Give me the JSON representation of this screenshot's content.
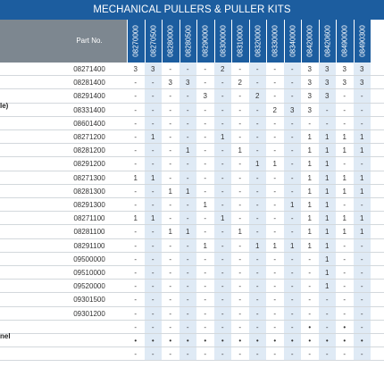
{
  "title": "MECHANICAL PULLERS & PULLER KITS",
  "part_no_header": "Part No.",
  "columns": [
    "08270000",
    "08270500",
    "08280000",
    "08280500",
    "08290000",
    "08300000",
    "08310000",
    "08320000",
    "08330000",
    "08340000",
    "08420000",
    "08420600",
    "08490000",
    "08490300"
  ],
  "descriptions": [
    {
      "row": 3,
      "text": "le)"
    },
    {
      "row": 20,
      "text": "nel"
    }
  ],
  "rows": [
    {
      "part": "08271400",
      "cells": [
        "3",
        "3",
        "-",
        "-",
        "-",
        "2",
        "-",
        "-",
        "-",
        "-",
        "3",
        "3",
        "3",
        "3"
      ]
    },
    {
      "part": "08281400",
      "cells": [
        "-",
        "-",
        "3",
        "3",
        "-",
        "-",
        "2",
        "-",
        "-",
        "-",
        "3",
        "3",
        "3",
        "3"
      ]
    },
    {
      "part": "08291400",
      "cells": [
        "-",
        "-",
        "-",
        "-",
        "3",
        "-",
        "-",
        "2",
        "-",
        "-",
        "3",
        "3",
        "-",
        "-"
      ]
    },
    {
      "part": "08331400",
      "cells": [
        "-",
        "-",
        "-",
        "-",
        "-",
        "-",
        "-",
        "-",
        "2",
        "3",
        "3",
        "-",
        "-",
        "-"
      ]
    },
    {
      "part": "08601400",
      "cells": [
        "-",
        "-",
        "-",
        "-",
        "-",
        "-",
        "-",
        "-",
        "-",
        "-",
        "-",
        "-",
        "-",
        "-"
      ]
    },
    {
      "part": "08271200",
      "cells": [
        "-",
        "1",
        "-",
        "-",
        "-",
        "1",
        "-",
        "-",
        "-",
        "-",
        "1",
        "1",
        "1",
        "1"
      ]
    },
    {
      "part": "08281200",
      "cells": [
        "-",
        "-",
        "-",
        "1",
        "-",
        "-",
        "1",
        "-",
        "-",
        "-",
        "1",
        "1",
        "1",
        "1"
      ]
    },
    {
      "part": "08291200",
      "cells": [
        "-",
        "-",
        "-",
        "-",
        "-",
        "-",
        "-",
        "1",
        "1",
        "-",
        "1",
        "1",
        "-",
        "-"
      ]
    },
    {
      "part": "08271300",
      "cells": [
        "1",
        "1",
        "-",
        "-",
        "-",
        "-",
        "-",
        "-",
        "-",
        "-",
        "1",
        "1",
        "1",
        "1"
      ]
    },
    {
      "part": "08281300",
      "cells": [
        "-",
        "-",
        "1",
        "1",
        "-",
        "-",
        "-",
        "-",
        "-",
        "-",
        "1",
        "1",
        "1",
        "1"
      ]
    },
    {
      "part": "08291300",
      "cells": [
        "-",
        "-",
        "-",
        "-",
        "1",
        "-",
        "-",
        "-",
        "-",
        "1",
        "1",
        "1",
        "-",
        "-"
      ]
    },
    {
      "part": "08271100",
      "cells": [
        "1",
        "1",
        "-",
        "-",
        "-",
        "1",
        "-",
        "-",
        "-",
        "-",
        "1",
        "1",
        "1",
        "1"
      ]
    },
    {
      "part": "08281100",
      "cells": [
        "-",
        "-",
        "1",
        "1",
        "-",
        "-",
        "1",
        "-",
        "-",
        "-",
        "1",
        "1",
        "1",
        "1"
      ]
    },
    {
      "part": "08291100",
      "cells": [
        "-",
        "-",
        "-",
        "-",
        "1",
        "-",
        "-",
        "1",
        "1",
        "1",
        "1",
        "1",
        "-",
        "-"
      ]
    },
    {
      "part": "09500000",
      "cells": [
        "-",
        "-",
        "-",
        "-",
        "-",
        "-",
        "-",
        "-",
        "-",
        "-",
        "-",
        "1",
        "-",
        "-"
      ]
    },
    {
      "part": "09510000",
      "cells": [
        "-",
        "-",
        "-",
        "-",
        "-",
        "-",
        "-",
        "-",
        "-",
        "-",
        "-",
        "1",
        "-",
        "-"
      ]
    },
    {
      "part": "09520000",
      "cells": [
        "-",
        "-",
        "-",
        "-",
        "-",
        "-",
        "-",
        "-",
        "-",
        "-",
        "-",
        "1",
        "-",
        "-"
      ]
    },
    {
      "part": "09301500",
      "cells": [
        "-",
        "-",
        "-",
        "-",
        "-",
        "-",
        "-",
        "-",
        "-",
        "-",
        "-",
        "-",
        "-",
        "-"
      ]
    },
    {
      "part": "09301200",
      "cells": [
        "-",
        "-",
        "-",
        "-",
        "-",
        "-",
        "-",
        "-",
        "-",
        "-",
        "-",
        "-",
        "-",
        "-"
      ]
    },
    {
      "part": "",
      "cells": [
        "-",
        "-",
        "-",
        "-",
        "-",
        "-",
        "-",
        "-",
        "-",
        "-",
        "•",
        "-",
        "•",
        "-"
      ]
    },
    {
      "part": "",
      "cells": [
        "•",
        "•",
        "•",
        "•",
        "•",
        "•",
        "•",
        "•",
        "•",
        "•",
        "•",
        "•",
        "•",
        "•"
      ]
    },
    {
      "part": "",
      "cells": [
        "-",
        "-",
        "-",
        "-",
        "-",
        "-",
        "-",
        "-",
        "-",
        "-",
        "-",
        "-",
        "-",
        "-"
      ]
    }
  ]
}
